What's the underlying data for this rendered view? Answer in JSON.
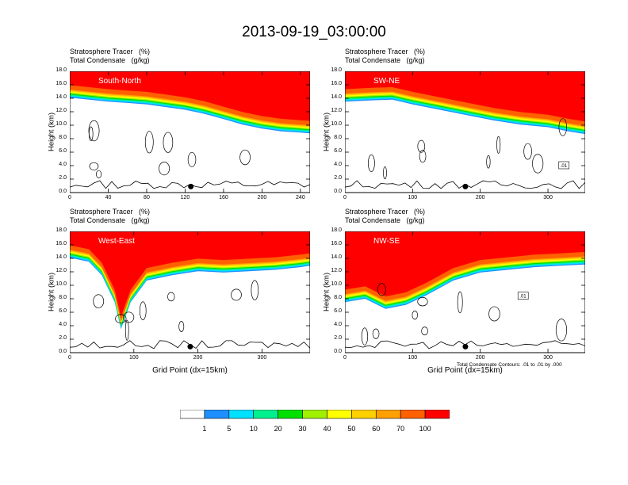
{
  "title": "2013-09-19_03:00:00",
  "colors": {
    "levels": [
      "#ffffff",
      "#1e8fff",
      "#00e0ff",
      "#00f090",
      "#00e000",
      "#a0f000",
      "#ffff00",
      "#ffd000",
      "#ffa000",
      "#ff6000",
      "#ff0000"
    ]
  },
  "chart_data": [
    {
      "type": "heatmap",
      "panel_label": "South-North",
      "title_lines": [
        "Stratosphere Tracer   (%)",
        "Total Condensate   (g/kg)"
      ],
      "ylabel": "Height (km)",
      "xlabel": "",
      "ylim": [
        0,
        18
      ],
      "yticks": [
        "0.0",
        "2.0",
        "4.0",
        "6.0",
        "8.0",
        "10.0",
        "12.0",
        "14.0",
        "16.0",
        "18.0"
      ],
      "xlim": [
        0,
        250
      ],
      "xticks": [
        0,
        40,
        80,
        120,
        160,
        200,
        240
      ],
      "tropopause_km": [
        [
          0,
          15.6
        ],
        [
          20,
          15.3
        ],
        [
          40,
          15.0
        ],
        [
          60,
          14.8
        ],
        [
          80,
          14.6
        ],
        [
          100,
          14.2
        ],
        [
          120,
          13.8
        ],
        [
          140,
          13.2
        ],
        [
          160,
          12.4
        ],
        [
          180,
          11.6
        ],
        [
          200,
          11.0
        ],
        [
          220,
          10.6
        ],
        [
          240,
          10.4
        ],
        [
          250,
          10.3
        ]
      ],
      "marker_x": 126
    },
    {
      "type": "heatmap",
      "panel_label": "SW-NE",
      "title_lines": [
        "Stratosphere Tracer   (%)",
        "Total Condensate   (g/kg)"
      ],
      "ylabel": "Height (km)",
      "xlabel": "",
      "ylim": [
        0,
        18
      ],
      "yticks": [
        "0.0",
        "2.0",
        "4.0",
        "6.0",
        "8.0",
        "10.0",
        "12.0",
        "14.0",
        "16.0",
        "18.0"
      ],
      "xlim": [
        0,
        355
      ],
      "xticks": [
        0,
        100,
        200,
        300
      ],
      "contour_label": ".01",
      "tropopause_km": [
        [
          0,
          15.0
        ],
        [
          40,
          15.2
        ],
        [
          70,
          15.3
        ],
        [
          100,
          14.6
        ],
        [
          140,
          13.8
        ],
        [
          180,
          13.0
        ],
        [
          220,
          12.2
        ],
        [
          260,
          11.6
        ],
        [
          300,
          11.2
        ],
        [
          330,
          10.6
        ],
        [
          355,
          10.2
        ]
      ],
      "marker_x": 178
    },
    {
      "type": "heatmap",
      "panel_label": "West-East",
      "title_lines": [
        "Stratosphere Tracer   (%)",
        "Total Condensate   (g/kg)"
      ],
      "ylabel": "Height (km)",
      "xlabel": "Grid Point (dx=15km)",
      "ylim": [
        0,
        18
      ],
      "yticks": [
        "0.0",
        "2.0",
        "4.0",
        "6.0",
        "8.0",
        "10.0",
        "12.0",
        "14.0",
        "16.0",
        "18.0"
      ],
      "xlim": [
        0,
        375
      ],
      "xticks": [
        0,
        100,
        200,
        300
      ],
      "tropopause_km": [
        [
          0,
          15.6
        ],
        [
          30,
          15.0
        ],
        [
          50,
          13.0
        ],
        [
          70,
          9.0
        ],
        [
          80,
          5.0
        ],
        [
          95,
          9.0
        ],
        [
          120,
          12.2
        ],
        [
          160,
          13.0
        ],
        [
          200,
          13.6
        ],
        [
          240,
          13.4
        ],
        [
          280,
          13.6
        ],
        [
          320,
          13.8
        ],
        [
          360,
          14.2
        ],
        [
          375,
          14.4
        ]
      ],
      "marker_x": 188
    },
    {
      "type": "heatmap",
      "panel_label": "NW-SE",
      "title_lines": [
        "Stratosphere Tracer   (%)",
        "Total Condensate   (g/kg)"
      ],
      "ylabel": "Height (km)",
      "xlabel": "Grid Point (dx=15km)",
      "ylim": [
        0,
        18
      ],
      "yticks": [
        "0.0",
        "2.0",
        "4.0",
        "6.0",
        "8.0",
        "10.0",
        "12.0",
        "14.0",
        "16.0",
        "18.0"
      ],
      "xlim": [
        0,
        355
      ],
      "xticks": [
        0,
        100,
        200,
        300
      ],
      "contour_label": ".01",
      "contour_note": "Total Condensate Contours: .01 to .01 by .000",
      "tropopause_km": [
        [
          0,
          9.0
        ],
        [
          30,
          9.5
        ],
        [
          60,
          8.0
        ],
        [
          90,
          8.6
        ],
        [
          120,
          10.0
        ],
        [
          160,
          12.2
        ],
        [
          200,
          13.4
        ],
        [
          240,
          13.8
        ],
        [
          280,
          14.2
        ],
        [
          320,
          14.4
        ],
        [
          355,
          14.6
        ]
      ],
      "marker_x": 178
    }
  ],
  "colorbar": {
    "labels": [
      "1",
      "5",
      "10",
      "20",
      "30",
      "40",
      "50",
      "60",
      "70",
      "100"
    ]
  }
}
